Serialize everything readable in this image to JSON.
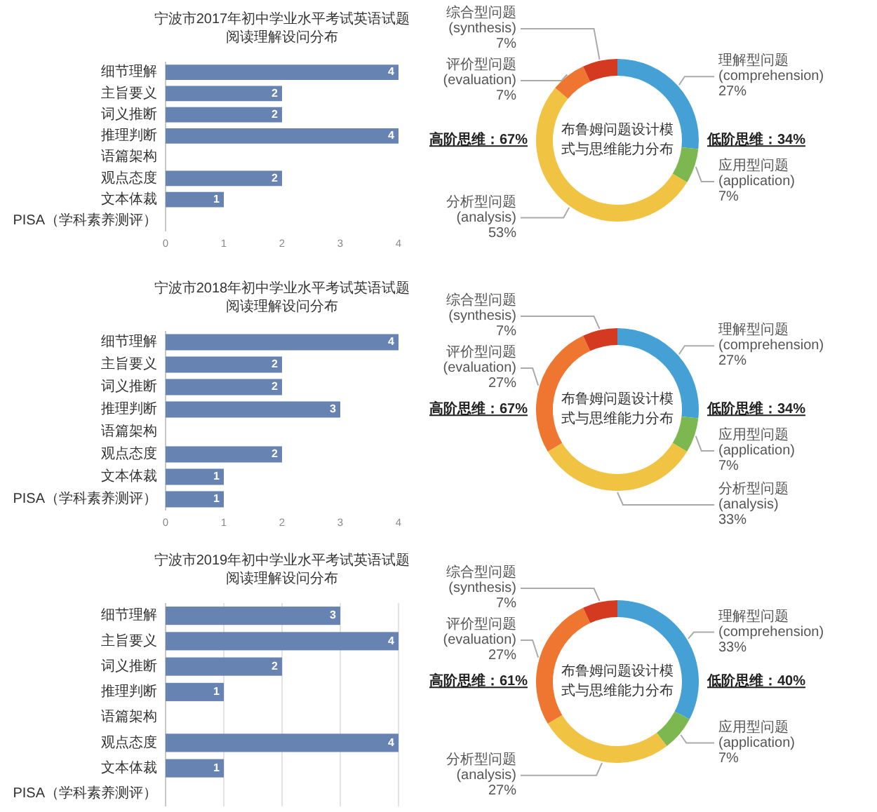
{
  "chart_data": [
    {
      "type": "bar",
      "orientation": "horizontal",
      "title": "宁波市2017年初中学业水平考试英语试题",
      "subtitle": "阅读理解设问分布",
      "categories": [
        "细节理解",
        "主旨要义",
        "词义推断",
        "推理判断",
        "语篇架构",
        "观点态度",
        "文本体裁",
        "PISA（学科素养测评）"
      ],
      "values": [
        4,
        2,
        2,
        4,
        null,
        2,
        1,
        null
      ],
      "color": "#6783b2",
      "xlim": [
        0,
        4
      ],
      "xticks": [
        0,
        1,
        2,
        3,
        4
      ],
      "data_labels": true
    },
    {
      "type": "donut",
      "title": "布鲁姆问题设计模式与思维能力分布",
      "categories": [
        "理解型问题(comprehension)",
        "应用型问题(application)",
        "分析型问题(analysis)",
        "评价型问题(evaluation)",
        "综合型问题(synthesis)"
      ],
      "values": [
        27,
        7,
        53,
        7,
        7
      ],
      "colors": [
        "#45a0d5",
        "#7cb84f",
        "#f1c343",
        "#ef7631",
        "#d43a1f"
      ],
      "value_labels": [
        "27%",
        "7%",
        "53%",
        "7%",
        "7%"
      ],
      "annotations": [
        "高阶思维：67%",
        "低阶思维：34%"
      ]
    },
    {
      "type": "bar",
      "orientation": "horizontal",
      "title": "宁波市2018年初中学业水平考试英语试题",
      "subtitle": "阅读理解设问分布",
      "categories": [
        "细节理解",
        "主旨要义",
        "词义推断",
        "推理判断",
        "语篇架构",
        "观点态度",
        "文本体裁",
        "PISA（学科素养测评）"
      ],
      "values": [
        4,
        2,
        2,
        3,
        null,
        2,
        1,
        1
      ],
      "color": "#6783b2",
      "xlim": [
        0,
        4
      ],
      "xticks": [
        0,
        1,
        2,
        3,
        4
      ],
      "data_labels": true
    },
    {
      "type": "donut",
      "title": "布鲁姆问题设计模式与思维能力分布",
      "categories": [
        "理解型问题(comprehension)",
        "应用型问题(application)",
        "分析型问题(analysis)",
        "评价型问题(evaluation)",
        "综合型问题(synthesis)"
      ],
      "values": [
        27,
        7,
        33,
        27,
        7
      ],
      "colors": [
        "#45a0d5",
        "#7cb84f",
        "#f1c343",
        "#ef7631",
        "#d43a1f"
      ],
      "value_labels": [
        "27%",
        "7%",
        "33%",
        "27%",
        "7%"
      ],
      "annotations": [
        "高阶思维：67%",
        "低阶思维：34%"
      ]
    },
    {
      "type": "bar",
      "orientation": "horizontal",
      "title": "宁波市2019年初中学业水平考试英语试题",
      "subtitle": "阅读理解设问分布",
      "categories": [
        "细节理解",
        "主旨要义",
        "词义推断",
        "推理判断",
        "语篇架构",
        "观点态度",
        "文本体裁",
        "PISA（学科素养测评）"
      ],
      "values": [
        3,
        4,
        2,
        1,
        null,
        4,
        1,
        null
      ],
      "color": "#6783b2",
      "xlim": [
        0,
        4
      ],
      "xticks": [
        {
          "value": 0,
          "label": null
        },
        {
          "value": 1,
          "label": null
        },
        {
          "value": 2,
          "label": null
        },
        {
          "value": 3,
          "label": null
        },
        {
          "value": 4,
          "label": null
        }
      ],
      "grid": "x",
      "tick_labels": "y",
      "data_labels": true
    },
    {
      "type": "donut",
      "title": "布鲁姆问题设计模式与思维能力分布",
      "categories": [
        "理解型问题(comprehension)",
        "应用型问题(application)",
        "分析型问题(analysis)",
        "评价型问题(evaluation)",
        "综合型问题(synthesis)"
      ],
      "values": [
        33,
        7,
        27,
        27,
        7
      ],
      "colors": [
        "#45a0d5",
        "#7cb84f",
        "#f1c343",
        "#ef7631",
        "#d43a1f"
      ],
      "value_labels": [
        "33%",
        "7%",
        "27%",
        "27%",
        "7%"
      ],
      "annotations": [
        "高阶思维：61%",
        "低阶思维：40%"
      ]
    }
  ]
}
